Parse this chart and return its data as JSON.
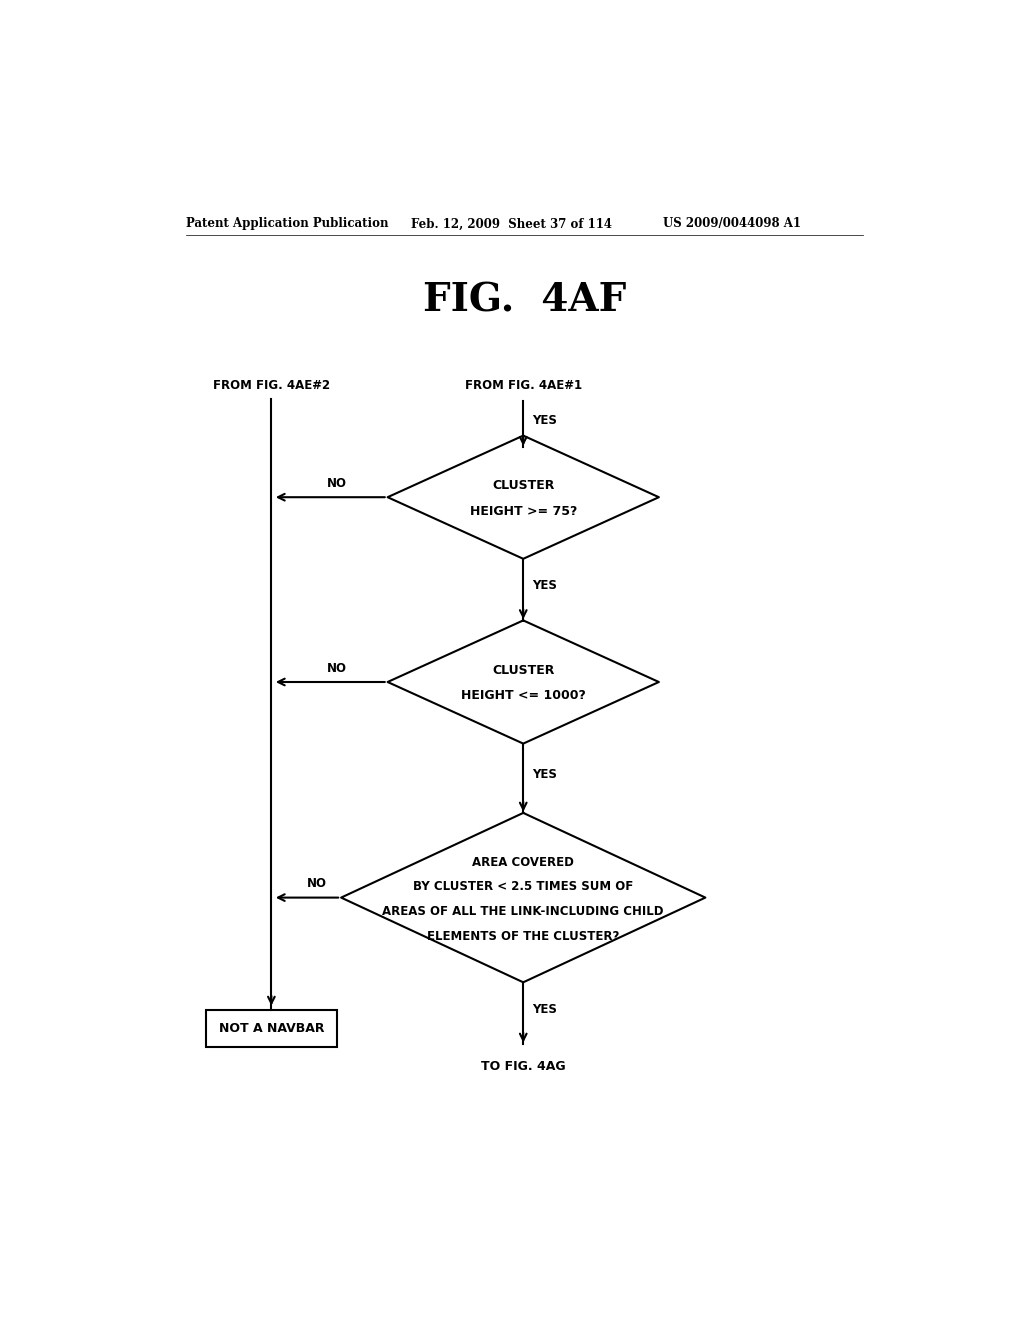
{
  "title": "FIG.  4AF",
  "header_left": "Patent Application Publication",
  "header_mid": "Feb. 12, 2009  Sheet 37 of 114",
  "header_right": "US 2009/0044098 A1",
  "bg_color": "#ffffff",
  "from_label1": "FROM FIG. 4AE#2",
  "from_label2": "FROM FIG. 4AE#1",
  "box1_text": "NOT A NAVBAR",
  "bottom_label": "TO FIG. 4AG",
  "yes_label": "YES",
  "no_label": "NO",
  "d1_line1": "CLUSTER",
  "d1_line2": "HEIGHT >= 75?",
  "d2_line1": "CLUSTER",
  "d2_line2": "HEIGHT <= 1000?",
  "d3_line1": "AREA COVERED",
  "d3_line2": "BY CLUSTER < 2.5 TIMES SUM OF",
  "d3_line3": "AREAS OF ALL THE LINK-INCLUDING CHILD",
  "d3_line4": "ELEMENTS OF THE CLUSTER?"
}
